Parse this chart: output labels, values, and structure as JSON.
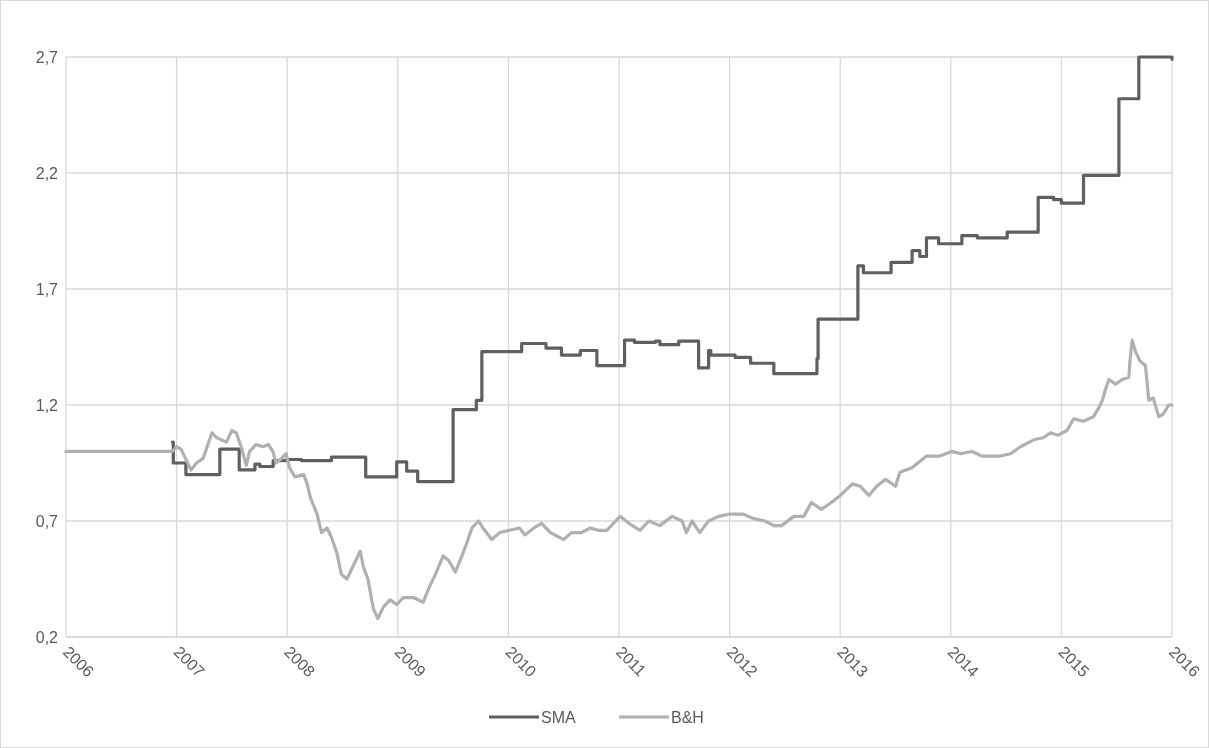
{
  "chart_data": {
    "type": "line",
    "xlim": [
      2006,
      2016
    ],
    "xticks": [
      2006,
      2007,
      2008,
      2009,
      2010,
      2011,
      2012,
      2013,
      2014,
      2015,
      2016
    ],
    "ylim": [
      0.2,
      2.7
    ],
    "yticks": [
      {
        "value": 0.2,
        "label": "0,2"
      },
      {
        "value": 0.7,
        "label": "0,7"
      },
      {
        "value": 1.2,
        "label": "1,2"
      },
      {
        "value": 1.7,
        "label": "1,7"
      },
      {
        "value": 2.2,
        "label": "2,2"
      },
      {
        "value": 2.7,
        "label": "2,7"
      }
    ],
    "grid": true,
    "legend": "bottom",
    "line_style": "solid",
    "marker": "none",
    "series": [
      {
        "name": "SMA",
        "type": "step",
        "color": "#5f5f5f",
        "x": [
          2006.963,
          2006.97,
          2007.084,
          2007.391,
          2007.566,
          2007.708,
          2007.753,
          2007.873,
          2007.995,
          2008.13,
          2008.4,
          2008.71,
          2008.99,
          2009.08,
          2009.18,
          2009.5,
          2009.71,
          2009.76,
          2010.12,
          2010.34,
          2010.48,
          2010.65,
          2010.8,
          2011.05,
          2011.14,
          2011.33,
          2011.37,
          2011.54,
          2011.72,
          2011.81,
          2011.83,
          2012.05,
          2012.19,
          2012.4,
          2012.79,
          2012.8,
          2013.16,
          2013.21,
          2013.46,
          2013.65,
          2013.72,
          2013.78,
          2013.89,
          2014.1,
          2014.24,
          2014.51,
          2014.79,
          2014.93,
          2015.0,
          2015.2,
          2015.52,
          2015.7,
          2016.0
        ],
        "values": [
          1.04,
          0.95,
          0.9,
          1.01,
          0.92,
          0.945,
          0.935,
          0.96,
          0.965,
          0.96,
          0.975,
          0.89,
          0.955,
          0.915,
          0.87,
          1.18,
          1.22,
          1.43,
          1.465,
          1.445,
          1.415,
          1.435,
          1.37,
          1.48,
          1.47,
          1.475,
          1.46,
          1.475,
          1.36,
          1.435,
          1.415,
          1.405,
          1.38,
          1.335,
          1.4,
          1.57,
          1.8,
          1.77,
          1.815,
          1.865,
          1.84,
          1.92,
          1.895,
          1.93,
          1.92,
          1.945,
          2.095,
          2.085,
          2.07,
          2.19,
          2.52,
          2.7,
          2.69
        ]
      },
      {
        "name": "B&H",
        "type": "line",
        "color": "#b0b0b0",
        "x": [
          2006.0,
          2006.963,
          2007.0,
          2007.04,
          2007.09,
          2007.13,
          2007.18,
          2007.24,
          2007.32,
          2007.36,
          2007.45,
          2007.5,
          2007.54,
          2007.59,
          2007.63,
          2007.66,
          2007.72,
          2007.78,
          2007.83,
          2007.87,
          2007.9,
          2007.95,
          2007.99,
          2008.02,
          2008.07,
          2008.15,
          2008.18,
          2008.21,
          2008.27,
          2008.31,
          2008.36,
          2008.4,
          2008.45,
          2008.49,
          2008.54,
          2008.58,
          2008.66,
          2008.69,
          2008.73,
          2008.76,
          2008.78,
          2008.82,
          2008.87,
          2008.93,
          2008.99,
          2009.05,
          2009.14,
          2009.23,
          2009.28,
          2009.34,
          2009.41,
          2009.46,
          2009.52,
          2009.58,
          2009.62,
          2009.67,
          2009.73,
          2009.77,
          2009.85,
          2009.92,
          2010.01,
          2010.1,
          2010.15,
          2010.23,
          2010.3,
          2010.38,
          2010.5,
          2010.57,
          2010.66,
          2010.74,
          2010.81,
          2010.89,
          2010.95,
          2011.01,
          2011.09,
          2011.19,
          2011.27,
          2011.37,
          2011.48,
          2011.57,
          2011.61,
          2011.66,
          2011.73,
          2011.81,
          2011.9,
          2012.0,
          2012.12,
          2012.22,
          2012.32,
          2012.4,
          2012.47,
          2012.58,
          2012.67,
          2012.74,
          2012.83,
          2012.92,
          2013.0,
          2013.11,
          2013.18,
          2013.26,
          2013.33,
          2013.41,
          2013.5,
          2013.54,
          2013.65,
          2013.78,
          2013.9,
          2014.01,
          2014.09,
          2014.19,
          2014.28,
          2014.36,
          2014.45,
          2014.54,
          2014.63,
          2014.75,
          2014.84,
          2014.9,
          2014.97,
          2015.05,
          2015.11,
          2015.2,
          2015.29,
          2015.34,
          2015.37,
          2015.4,
          2015.43,
          2015.49,
          2015.55,
          2015.61,
          2015.62,
          2015.64,
          2015.67,
          2015.71,
          2015.76,
          2015.79,
          2015.83,
          2015.88,
          2015.92,
          2015.97,
          2016.0
        ],
        "values": [
          1.0,
          1.0,
          1.02,
          1.01,
          0.96,
          0.92,
          0.95,
          0.97,
          1.08,
          1.06,
          1.04,
          1.09,
          1.08,
          1.01,
          0.94,
          1.0,
          1.03,
          1.02,
          1.03,
          1.0,
          0.95,
          0.97,
          0.99,
          0.93,
          0.89,
          0.9,
          0.86,
          0.8,
          0.73,
          0.65,
          0.67,
          0.63,
          0.56,
          0.47,
          0.45,
          0.49,
          0.57,
          0.5,
          0.45,
          0.37,
          0.32,
          0.28,
          0.33,
          0.36,
          0.34,
          0.37,
          0.37,
          0.35,
          0.41,
          0.47,
          0.55,
          0.53,
          0.48,
          0.55,
          0.6,
          0.67,
          0.7,
          0.67,
          0.62,
          0.65,
          0.66,
          0.67,
          0.64,
          0.67,
          0.69,
          0.65,
          0.62,
          0.65,
          0.65,
          0.67,
          0.66,
          0.66,
          0.69,
          0.72,
          0.69,
          0.66,
          0.7,
          0.68,
          0.72,
          0.7,
          0.65,
          0.7,
          0.65,
          0.7,
          0.72,
          0.73,
          0.73,
          0.71,
          0.7,
          0.68,
          0.68,
          0.72,
          0.72,
          0.78,
          0.75,
          0.78,
          0.81,
          0.86,
          0.85,
          0.81,
          0.85,
          0.88,
          0.85,
          0.91,
          0.93,
          0.98,
          0.98,
          1.0,
          0.99,
          1.0,
          0.98,
          0.98,
          0.98,
          0.99,
          1.02,
          1.05,
          1.06,
          1.08,
          1.07,
          1.09,
          1.14,
          1.13,
          1.15,
          1.19,
          1.22,
          1.27,
          1.31,
          1.29,
          1.31,
          1.32,
          1.39,
          1.48,
          1.43,
          1.39,
          1.37,
          1.22,
          1.23,
          1.15,
          1.16,
          1.2,
          1.2
        ]
      }
    ]
  }
}
